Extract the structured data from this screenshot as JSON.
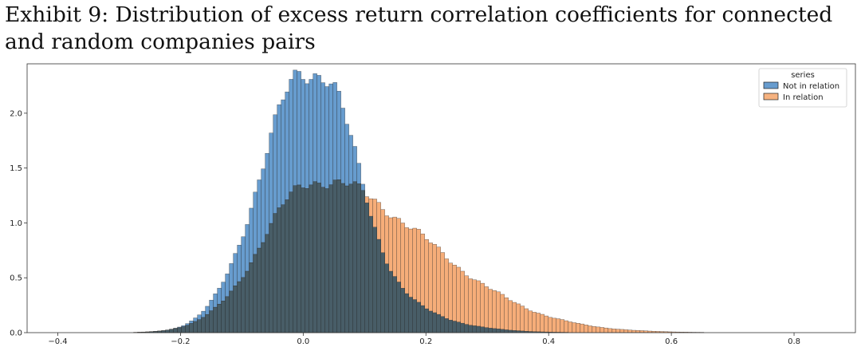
{
  "caption": {
    "line1": "Exhibit 9: Distribution of excess return correlation coefficients for connected",
    "line2": "and random companies pairs"
  },
  "chart_data": {
    "type": "histogram",
    "title": "",
    "xlabel": "",
    "ylabel": "",
    "xlim": [
      -0.45,
      0.9
    ],
    "ylim": [
      0,
      2.45
    ],
    "xticks": [
      -0.4,
      -0.2,
      0.0,
      0.2,
      0.4,
      0.6,
      0.8
    ],
    "xtick_labels": [
      "−0.4",
      "−0.2",
      "0.0",
      "0.2",
      "0.4",
      "0.6",
      "0.8"
    ],
    "yticks": [
      0.0,
      0.5,
      1.0,
      1.5,
      2.0
    ],
    "ytick_labels": [
      "0.0",
      "0.5",
      "1.0",
      "1.5",
      "2.0"
    ],
    "bin_width": 0.0065,
    "legend": {
      "title": "series",
      "position": "top-right"
    },
    "series": [
      {
        "name": "Not in relation",
        "color": "#4c8bc5",
        "range": [
          -0.4,
          0.88
        ],
        "shape": {
          "peak": 2.37,
          "mode": 0.005,
          "sd_left": 0.075,
          "sd_right": 0.065,
          "tail_weight": 0.25,
          "tail_sd": 0.13
        }
      },
      {
        "name": "In relation",
        "color": "#f5a46a",
        "range": [
          -0.3,
          0.88
        ],
        "shape": {
          "peak": 1.39,
          "mode": 0.02,
          "sd_left": 0.085,
          "sd_right": 0.18,
          "tail_weight": 0.0,
          "tail_sd": 0.1
        }
      }
    ],
    "overlap_color": "#3f5a66"
  }
}
